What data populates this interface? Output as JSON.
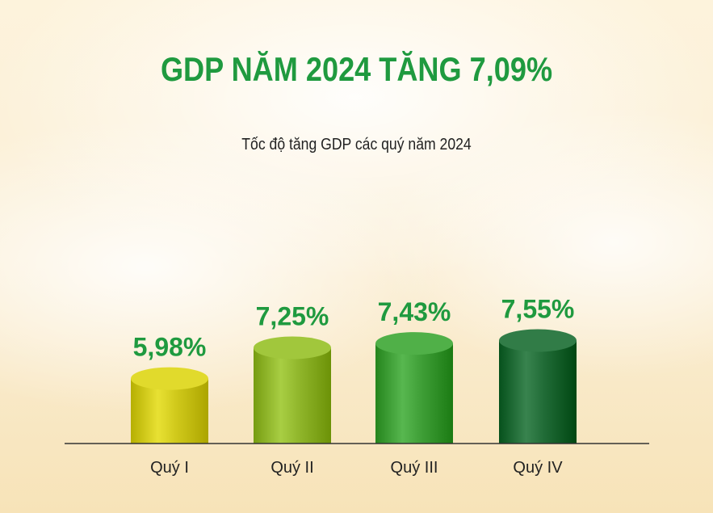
{
  "header": {
    "title": "GDP NĂM 2024 TĂNG 7,09%",
    "subtitle": "Tốc độ tăng GDP các quý năm 2024"
  },
  "colors": {
    "title": "#1f9a3f",
    "value_label": "#1f9a3f",
    "bars": [
      "#cfc81a",
      "#8fb52a",
      "#3e9e36",
      "#1f6a35"
    ]
  },
  "chart_data": {
    "type": "bar",
    "title": "Tốc độ tăng GDP các quý năm 2024",
    "categories": [
      "Quý I",
      "Quý II",
      "Quý III",
      "Quý IV"
    ],
    "values": [
      5.98,
      7.25,
      7.43,
      7.55
    ],
    "value_labels": [
      "5,98%",
      "7,25%",
      "7,43%",
      "7,55%"
    ],
    "unit": "%",
    "ylim": [
      0,
      8
    ],
    "grid": false,
    "legend": "none"
  }
}
